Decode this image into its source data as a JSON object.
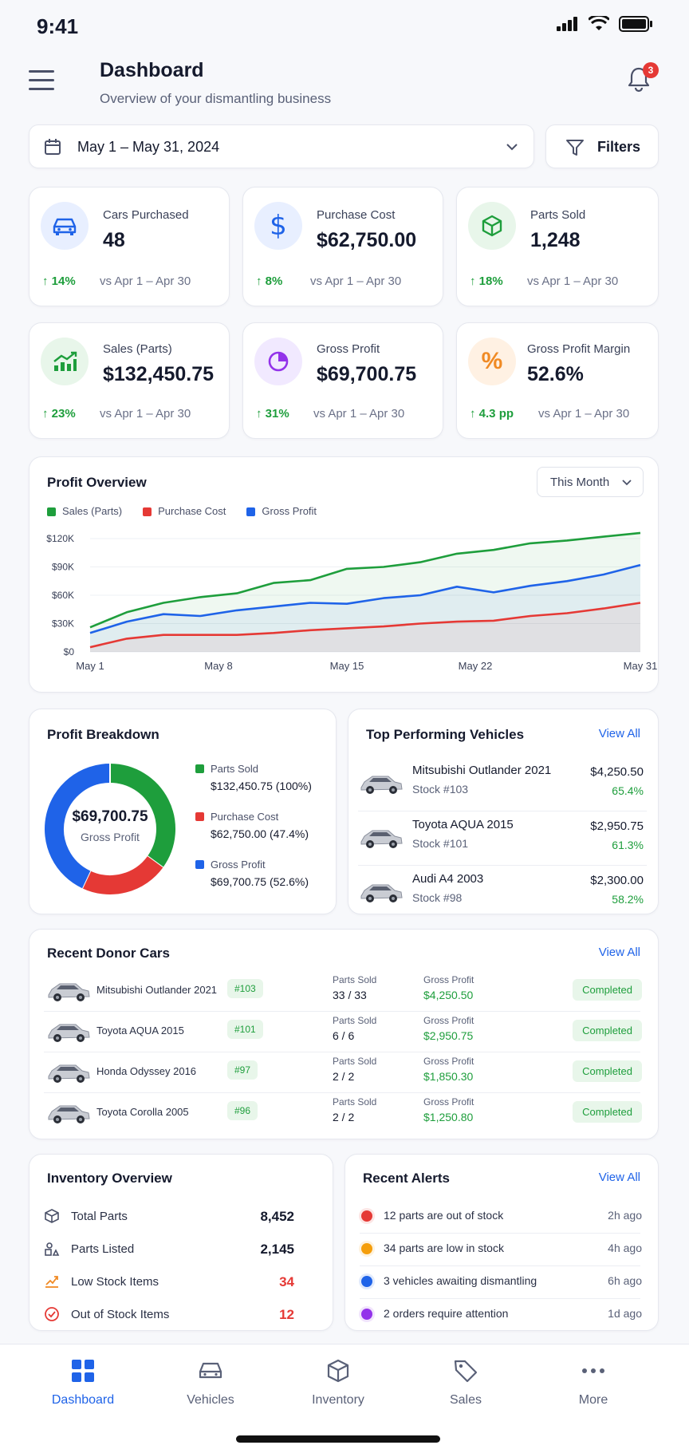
{
  "status_bar": {
    "time": "9:41"
  },
  "header": {
    "title": "Dashboard",
    "subtitle": "Overview of your dismantling business",
    "notifications": "3"
  },
  "date_range": "May 1 – May 31, 2024",
  "filters_label": "Filters",
  "kpis": [
    {
      "label": "Cars Purchased",
      "value": "48",
      "delta": "14%",
      "vs": "vs Apr 1 – Apr 30",
      "icon": "car-icon"
    },
    {
      "label": "Purchase Cost",
      "value": "$62,750.00",
      "delta": "8%",
      "vs": "vs Apr 1 – Apr 30",
      "icon": "dollar-icon"
    },
    {
      "label": "Parts Sold",
      "value": "1,248",
      "delta": "18%",
      "vs": "vs Apr 1 – Apr 30",
      "icon": "box-icon"
    },
    {
      "label": "Sales (Parts)",
      "value": "$132,450.75",
      "delta": "23%",
      "vs": "vs Apr 1 – Apr 30",
      "icon": "trend-icon"
    },
    {
      "label": "Gross Profit",
      "value": "$69,700.75",
      "delta": "31%",
      "vs": "vs Apr 1 – Apr 30",
      "icon": "pie-icon"
    },
    {
      "label": "Gross Profit Margin",
      "value": "52.6%",
      "delta": "4.3 pp",
      "vs": "vs Apr 1 – Apr 30",
      "icon": "percent-icon"
    }
  ],
  "profit_overview": {
    "title": "Profit Overview",
    "period": "This Month"
  },
  "chart_data": {
    "type": "area",
    "x": [
      "May 1",
      "May 3",
      "May 5",
      "May 7",
      "May 9",
      "May 11",
      "May 13",
      "May 15",
      "May 17",
      "May 19",
      "May 21",
      "May 23",
      "May 25",
      "May 27",
      "May 29",
      "May 31"
    ],
    "xticks": [
      "May 1",
      "May 8",
      "May 15",
      "May 22",
      "May 31"
    ],
    "yticks": [
      "$0",
      "$30K",
      "$60K",
      "$90K",
      "$120K"
    ],
    "ylim": [
      0,
      120000
    ],
    "legend_position": "top-left",
    "series": [
      {
        "name": "Sales (Parts)",
        "color": "#1e9e3c",
        "values": [
          26000,
          42000,
          52000,
          58000,
          62000,
          73000,
          76000,
          88000,
          90000,
          95000,
          104000,
          108000,
          115000,
          118000,
          122000,
          126000
        ]
      },
      {
        "name": "Purchase Cost",
        "color": "#e53935",
        "values": [
          5000,
          14000,
          18000,
          18000,
          18000,
          20000,
          23000,
          25000,
          27000,
          30000,
          32000,
          33000,
          38000,
          41000,
          46000,
          52000
        ]
      },
      {
        "name": "Gross Profit",
        "color": "#1f63e8",
        "values": [
          20000,
          32000,
          40000,
          38000,
          44000,
          48000,
          52000,
          51000,
          57000,
          60000,
          69000,
          63000,
          70000,
          75000,
          82000,
          92000
        ]
      }
    ]
  },
  "breakdown": {
    "title": "Profit Breakdown",
    "center_value": "$69,700.75",
    "center_label": "Gross Profit",
    "items": [
      {
        "label": "Parts Sold",
        "value": "$132,450.75 (100%)",
        "color": "#1e9e3c",
        "share": 0.35
      },
      {
        "label": "Purchase Cost",
        "value": "$62,750.00 (47.4%)",
        "color": "#e53935",
        "share": 0.22
      },
      {
        "label": "Gross Profit",
        "value": "$69,700.75 (52.6%)",
        "color": "#1f63e8",
        "share": 0.43
      }
    ]
  },
  "top_vehicles": {
    "title": "Top Performing Vehicles",
    "view_all": "View All",
    "items": [
      {
        "name": "Mitsubishi Outlander 2021",
        "stock": "Stock #103",
        "amount": "$4,250.50",
        "pct": "65.4%"
      },
      {
        "name": "Toyota AQUA 2015",
        "stock": "Stock #101",
        "amount": "$2,950.75",
        "pct": "61.3%"
      },
      {
        "name": "Audi A4 2003",
        "stock": "Stock #98",
        "amount": "$2,300.00",
        "pct": "58.2%"
      }
    ]
  },
  "donor_cars": {
    "title": "Recent Donor Cars",
    "view_all": "View All",
    "parts_label": "Parts Sold",
    "profit_label": "Gross Profit",
    "rows": [
      {
        "name": "Mitsubishi Outlander 2021",
        "tag": "#103",
        "parts": "33 / 33",
        "profit": "$4,250.50",
        "status": "Completed"
      },
      {
        "name": "Toyota AQUA 2015",
        "tag": "#101",
        "parts": "6 / 6",
        "profit": "$2,950.75",
        "status": "Completed"
      },
      {
        "name": "Honda Odyssey 2016",
        "tag": "#97",
        "parts": "2 / 2",
        "profit": "$1,850.30",
        "status": "Completed"
      },
      {
        "name": "Toyota Corolla 2005",
        "tag": "#96",
        "parts": "2 / 2",
        "profit": "$1,250.80",
        "status": "Completed"
      }
    ]
  },
  "inventory": {
    "title": "Inventory Overview",
    "items": [
      {
        "label": "Total Parts",
        "value": "8,452",
        "color": "#151a2d"
      },
      {
        "label": "Parts Listed",
        "value": "2,145",
        "color": "#151a2d"
      },
      {
        "label": "Low Stock Items",
        "value": "34",
        "color": "#e53935"
      },
      {
        "label": "Out of Stock Items",
        "value": "12",
        "color": "#e53935"
      }
    ]
  },
  "alerts": {
    "title": "Recent Alerts",
    "view_all": "View All",
    "items": [
      {
        "text": "12 parts are out of stock",
        "time": "2h ago",
        "color": "#e53935"
      },
      {
        "text": "34 parts are low in stock",
        "time": "4h ago",
        "color": "#f59e0b"
      },
      {
        "text": "3 vehicles awaiting dismantling",
        "time": "6h ago",
        "color": "#1f63e8"
      },
      {
        "text": "2 orders require attention",
        "time": "1d ago",
        "color": "#9333ea"
      }
    ]
  },
  "tabs": [
    {
      "label": "Dashboard",
      "icon": "dashboard-icon",
      "active": true
    },
    {
      "label": "Vehicles",
      "icon": "car-icon",
      "active": false
    },
    {
      "label": "Inventory",
      "icon": "box-icon",
      "active": false
    },
    {
      "label": "Sales",
      "icon": "tag-icon",
      "active": false
    },
    {
      "label": "More",
      "icon": "more-icon",
      "active": false
    }
  ]
}
